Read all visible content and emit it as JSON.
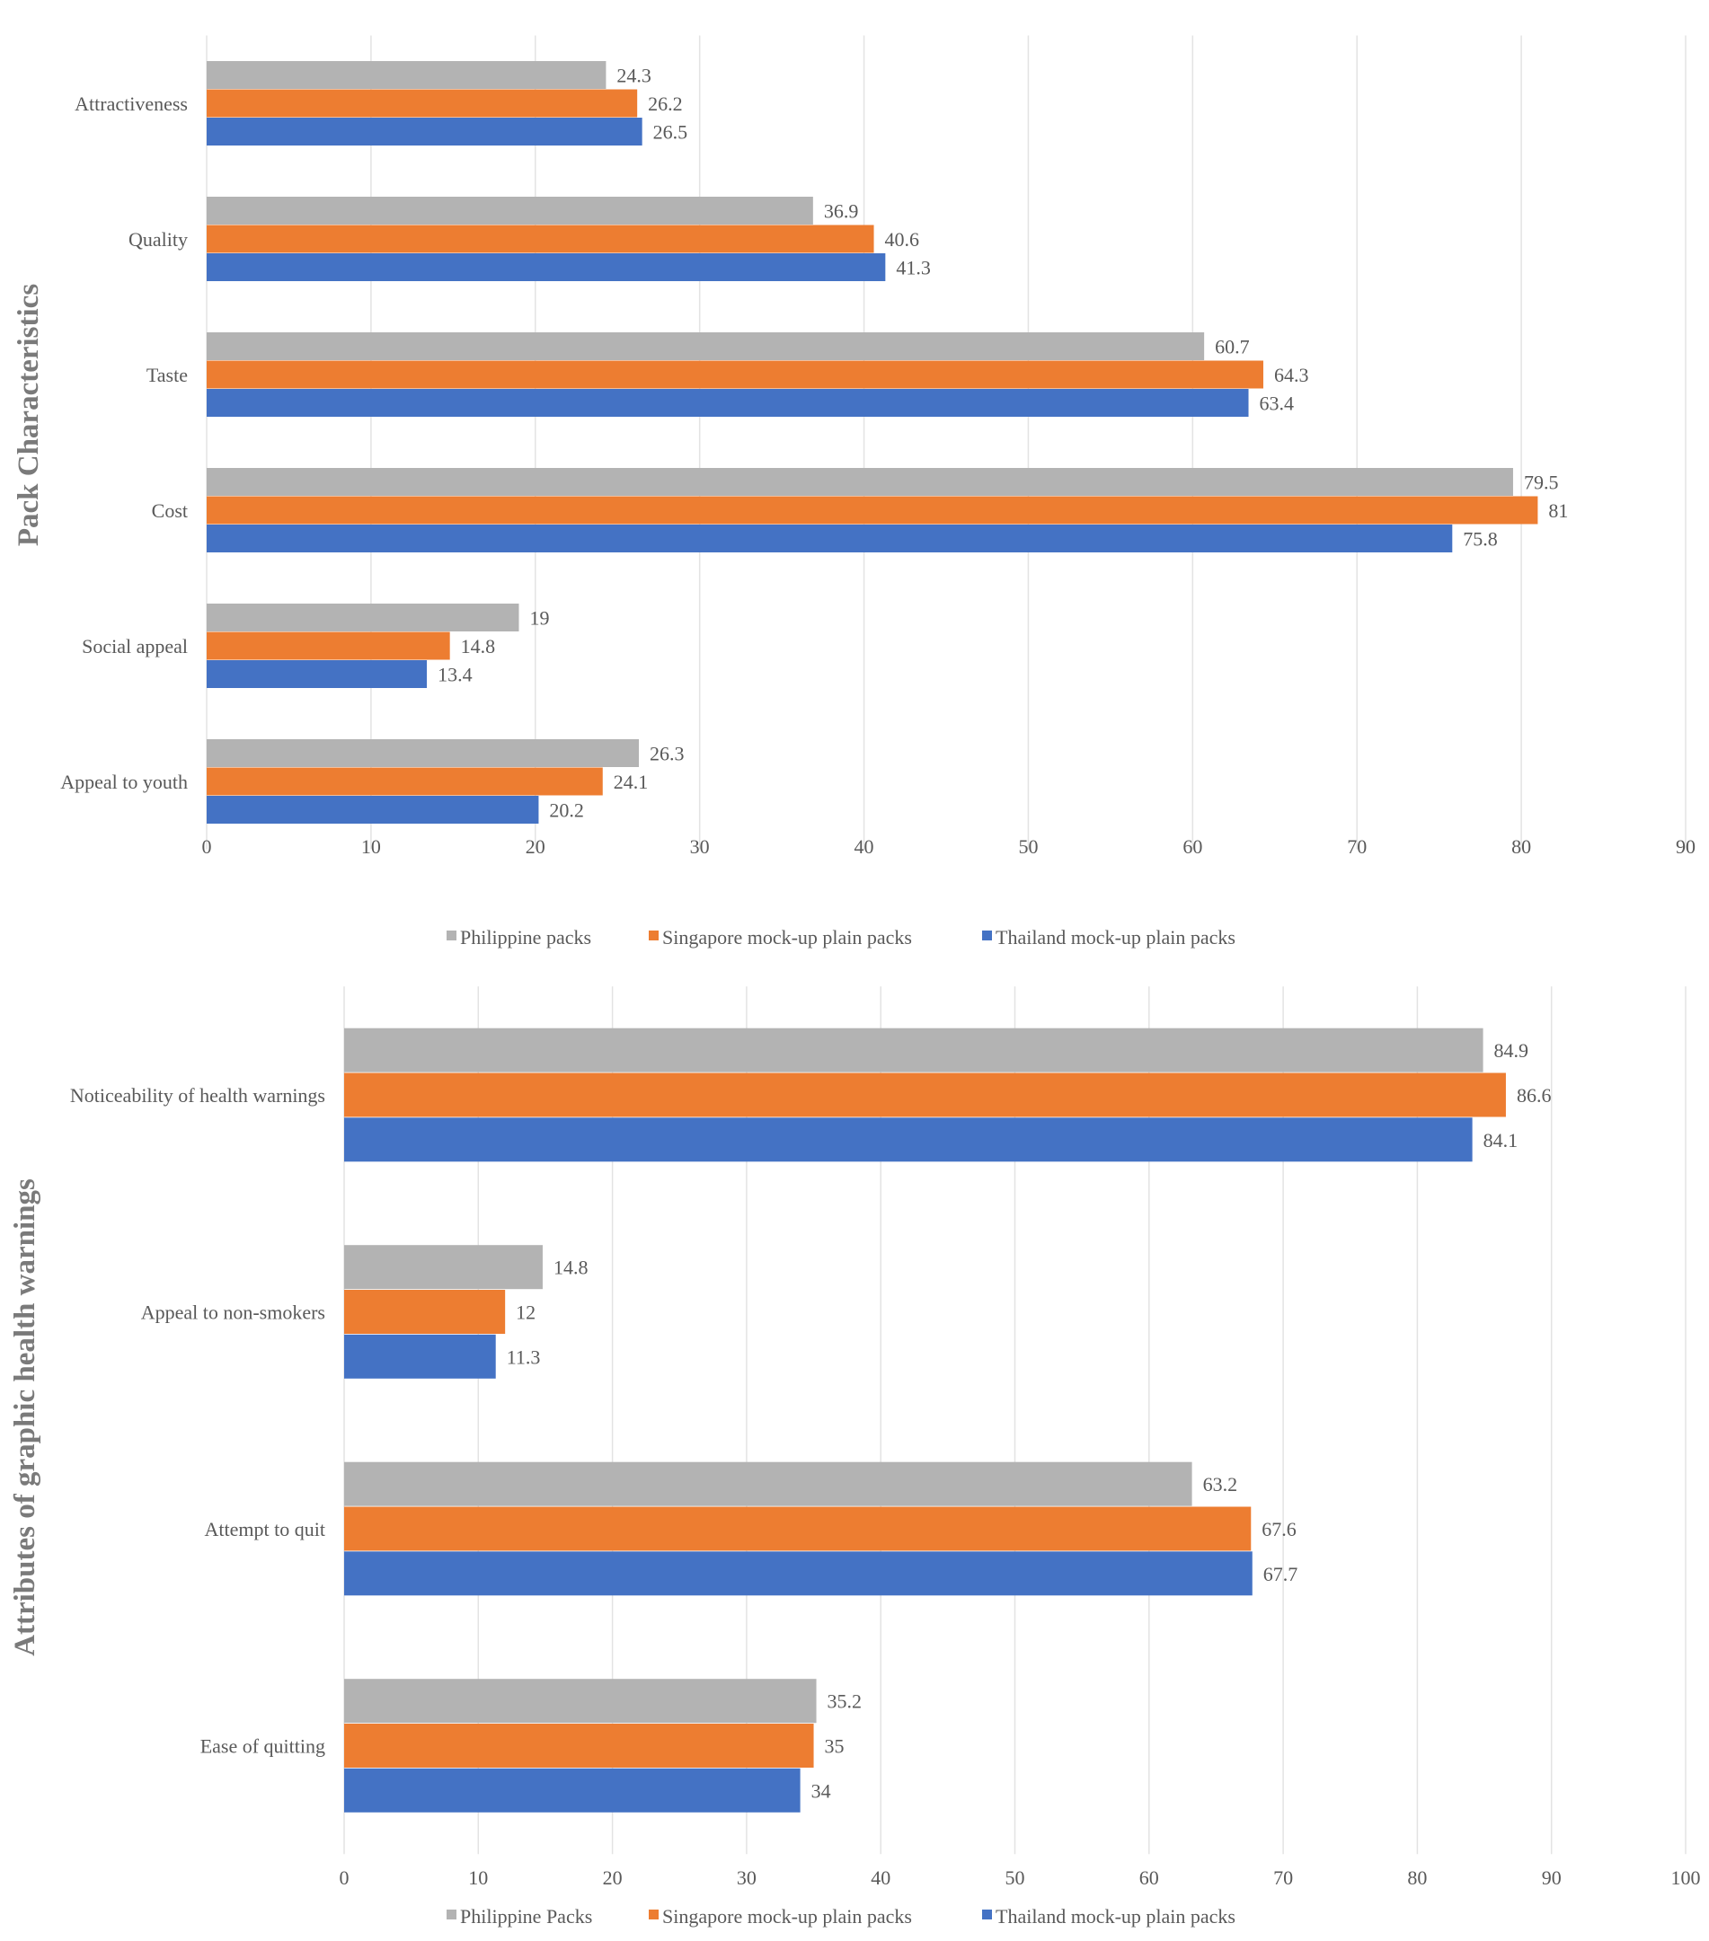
{
  "colors": {
    "philippine": "#b3b3b3",
    "singapore": "#ed7d31",
    "thailand": "#4472c4"
  },
  "chart_data": [
    {
      "type": "bar",
      "orientation": "horizontal",
      "ylabel": "Pack Characteristics",
      "xlim": [
        0,
        90
      ],
      "xticks": [
        0,
        10,
        20,
        30,
        40,
        50,
        60,
        70,
        80,
        90
      ],
      "grid": true,
      "legend_position": "bottom",
      "categories": [
        "Attractiveness",
        "Quality",
        "Taste",
        "Cost",
        "Social appeal",
        "Appeal to youth"
      ],
      "series": [
        {
          "name": "Philippine packs",
          "color": "#b3b3b3",
          "values": [
            24.3,
            36.9,
            60.7,
            79.5,
            19,
            26.3
          ]
        },
        {
          "name": "Singapore mock-up plain packs",
          "color": "#ed7d31",
          "values": [
            26.2,
            40.6,
            64.3,
            81,
            14.8,
            24.1
          ]
        },
        {
          "name": "Thailand mock-up plain packs",
          "color": "#4472c4",
          "values": [
            26.5,
            41.3,
            63.4,
            75.8,
            13.4,
            20.2
          ]
        }
      ]
    },
    {
      "type": "bar",
      "orientation": "horizontal",
      "ylabel": "Attributes of graphic health warnings",
      "xlim": [
        0,
        100
      ],
      "xticks": [
        0,
        10,
        20,
        30,
        40,
        50,
        60,
        70,
        80,
        90,
        100
      ],
      "grid": true,
      "legend_position": "bottom",
      "categories": [
        "Noticeability of health warnings",
        "Appeal to non-smokers",
        "Attempt to quit",
        "Ease of quitting"
      ],
      "series": [
        {
          "name": "Philippine Packs",
          "color": "#b3b3b3",
          "values": [
            84.9,
            14.8,
            63.2,
            35.2
          ]
        },
        {
          "name": "Singapore mock-up plain packs",
          "color": "#ed7d31",
          "values": [
            86.6,
            12,
            67.6,
            35
          ]
        },
        {
          "name": "Thailand mock-up plain packs",
          "color": "#4472c4",
          "values": [
            84.1,
            11.3,
            67.7,
            34
          ]
        }
      ]
    }
  ]
}
